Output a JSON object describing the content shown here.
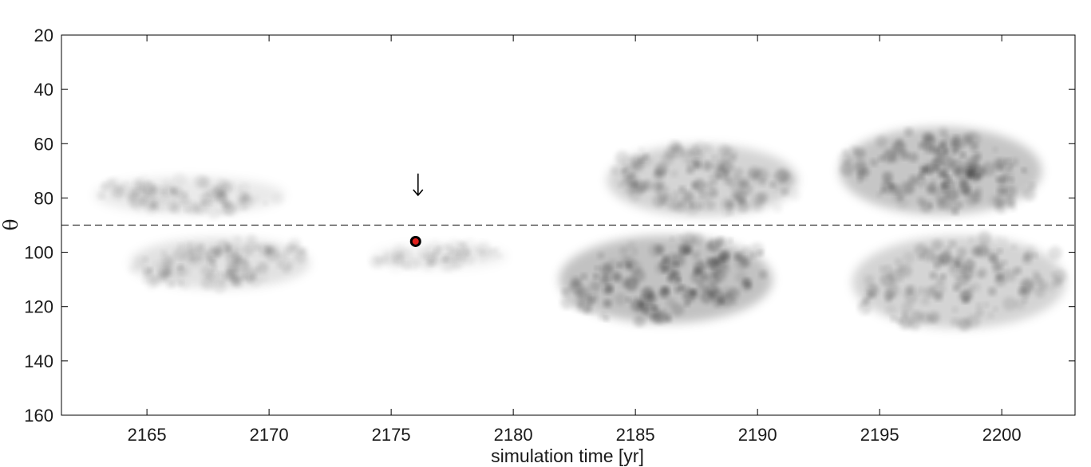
{
  "chart_data": {
    "type": "heatmap",
    "title": "",
    "xlabel": "simulation time [yr]",
    "ylabel": "θ",
    "xlim": [
      2161.5,
      2203
    ],
    "ylim": [
      20,
      160
    ],
    "y_reversed": true,
    "x_ticks": [
      2165,
      2170,
      2175,
      2180,
      2185,
      2190,
      2195,
      2200
    ],
    "y_ticks": [
      20,
      40,
      60,
      80,
      100,
      120,
      140,
      160
    ],
    "colormap": "grayscale (white = low, black = high)",
    "grid": false,
    "equator_line": {
      "y": 90,
      "style": "dashed",
      "color": "#333333"
    },
    "marker": {
      "x": 2176,
      "y": 96,
      "fill": "#e0201c",
      "edge": "#000000"
    },
    "arrow": {
      "x": 2176.1,
      "y_from": 71,
      "y_to": 79,
      "glyph": "↓"
    },
    "patches": [
      {
        "x_range": [
          2162.5,
          2171
        ],
        "y_range": [
          71,
          87
        ],
        "intensity": 0.3
      },
      {
        "x_range": [
          2164,
          2172
        ],
        "y_range": [
          93,
          115
        ],
        "intensity": 0.4
      },
      {
        "x_range": [
          2174,
          2180
        ],
        "y_range": [
          96,
          107
        ],
        "intensity": 0.2
      },
      {
        "x_range": [
          2183.5,
          2192
        ],
        "y_range": [
          58,
          89
        ],
        "intensity": 0.6
      },
      {
        "x_range": [
          2181.5,
          2191
        ],
        "y_range": [
          91,
          129
        ],
        "intensity": 0.85
      },
      {
        "x_range": [
          2193,
          2202
        ],
        "y_range": [
          51,
          89
        ],
        "intensity": 0.8
      },
      {
        "x_range": [
          2193.5,
          2203
        ],
        "y_range": [
          91,
          131
        ],
        "intensity": 0.6
      }
    ]
  }
}
